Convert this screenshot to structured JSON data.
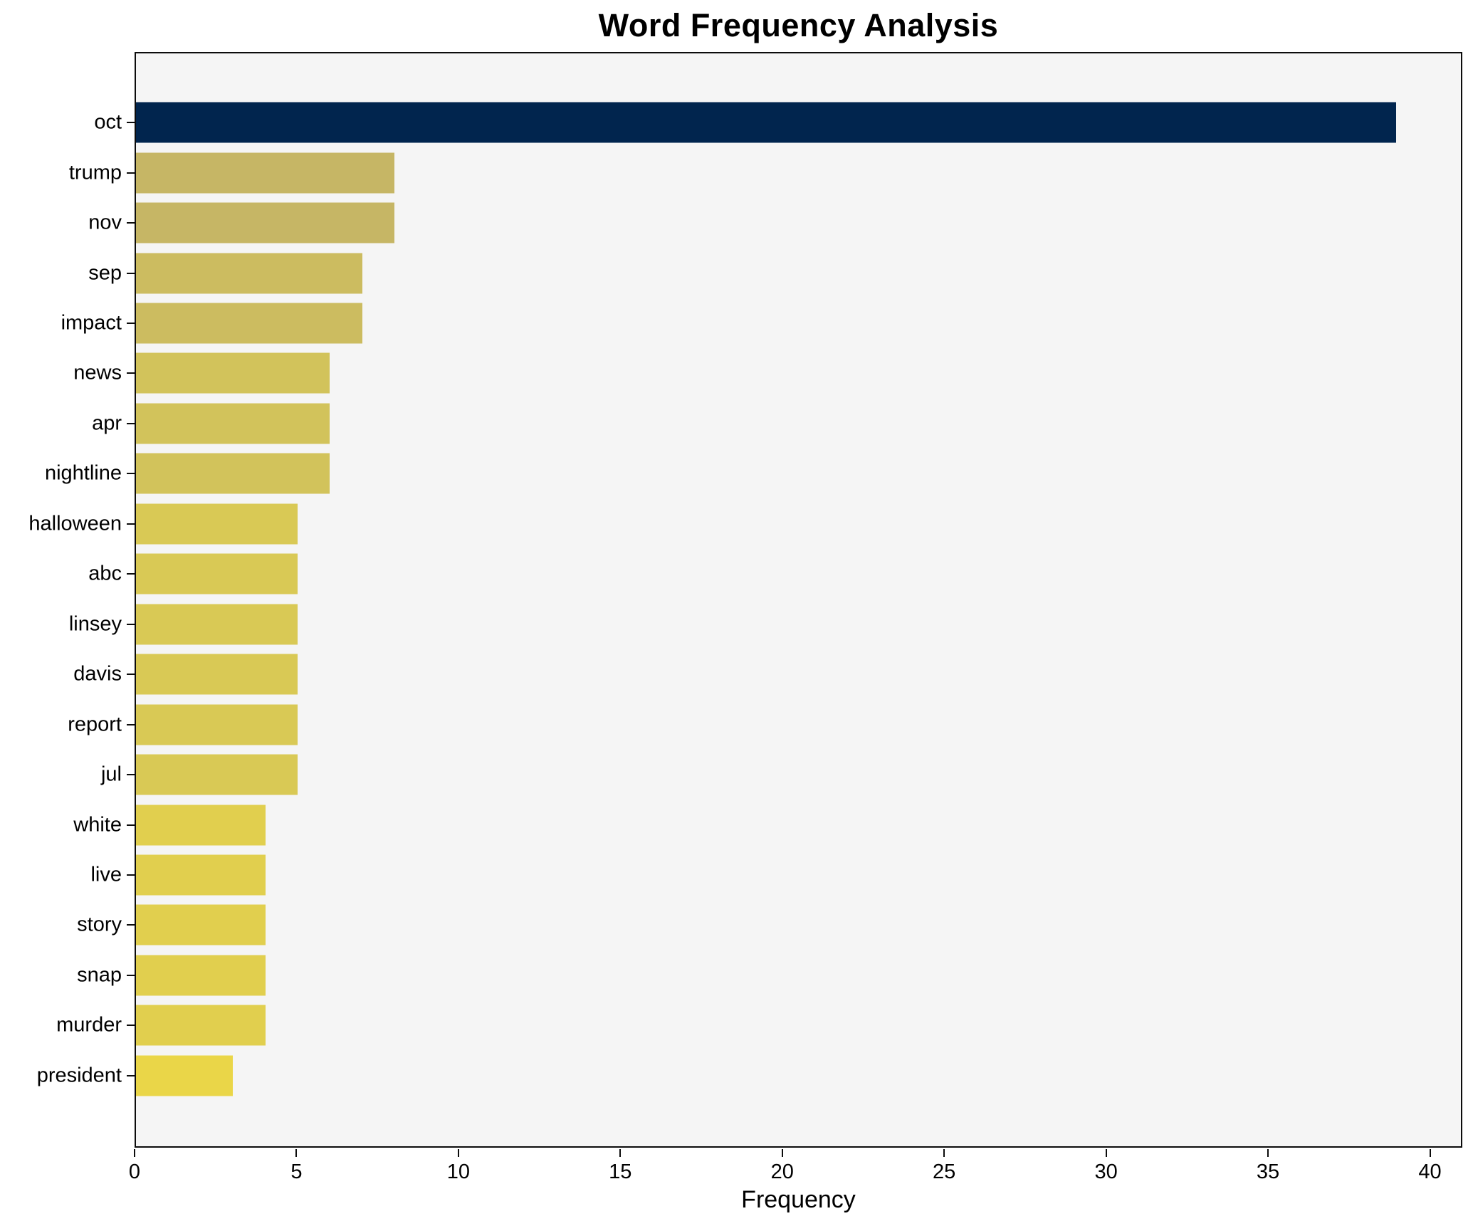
{
  "chart_data": {
    "type": "bar",
    "orientation": "horizontal",
    "title": "Word Frequency Analysis",
    "xlabel": "Frequency",
    "ylabel": "",
    "categories": [
      "oct",
      "trump",
      "nov",
      "sep",
      "impact",
      "news",
      "apr",
      "nightline",
      "halloween",
      "abc",
      "linsey",
      "davis",
      "report",
      "jul",
      "white",
      "live",
      "story",
      "snap",
      "murder",
      "president"
    ],
    "values": [
      39,
      8,
      8,
      7,
      7,
      6,
      6,
      6,
      5,
      5,
      5,
      5,
      5,
      5,
      4,
      4,
      4,
      4,
      4,
      3
    ],
    "bar_colors": [
      "#01254e",
      "#c6b665",
      "#c6b665",
      "#ccbc60",
      "#ccbc60",
      "#d2c35b",
      "#d2c35b",
      "#d2c35b",
      "#d9c955",
      "#d9c955",
      "#d9c955",
      "#d9c955",
      "#d9c955",
      "#d9c955",
      "#e1cf4e",
      "#e1cf4e",
      "#e1cf4e",
      "#e1cf4e",
      "#e1cf4e",
      "#ead648"
    ],
    "xticks": [
      0,
      5,
      10,
      15,
      20,
      25,
      30,
      35,
      40
    ],
    "xlim": [
      0,
      41
    ],
    "grid": false,
    "plot_background": "#f5f5f5",
    "spine_color": "#0c0c0c"
  }
}
